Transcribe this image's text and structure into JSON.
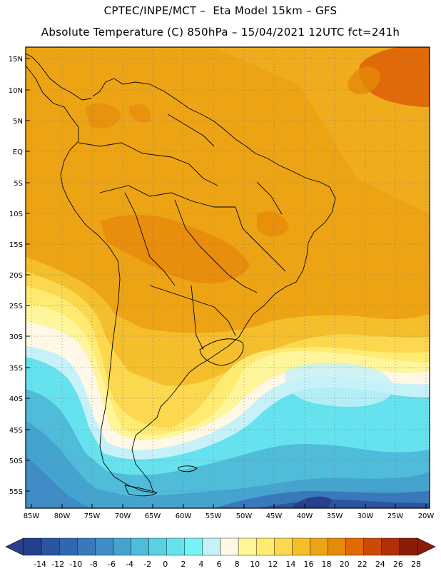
{
  "title_line1": "CPTEC/INPE/MCT –  Eta Model 15km – GFS",
  "title_line2": "Absolute Temperature (C) 850hPa – 15/04/2021 12UTC fct=241h",
  "lat_labels": [
    "15N",
    "10N",
    "5N",
    "EQ",
    "5S",
    "10S",
    "15S",
    "20S",
    "25S",
    "30S",
    "35S",
    "40S",
    "45S",
    "50S",
    "55S"
  ],
  "lon_labels": [
    "85W",
    "80W",
    "75W",
    "70W",
    "65W",
    "60W",
    "55W",
    "50W",
    "45W",
    "40W",
    "35W",
    "30W",
    "25W",
    "20W"
  ],
  "colorbar": {
    "labels": [
      "-14",
      "-12",
      "-10",
      "-8",
      "-6",
      "-4",
      "-2",
      "0",
      "2",
      "4",
      "6",
      "8",
      "10",
      "12",
      "14",
      "16",
      "18",
      "20",
      "22",
      "24",
      "26",
      "28"
    ],
    "colors": [
      "#27408b",
      "#2c55a0",
      "#3266b0",
      "#3978bb",
      "#3f8cc6",
      "#45a3cf",
      "#4fbcd9",
      "#5ad0e4",
      "#66e2ee",
      "#77f3f6",
      "#c7f1f9",
      "#fff8e6",
      "#fff59a",
      "#ffea72",
      "#fbd84e",
      "#f4be2d",
      "#eda414",
      "#e68a0a",
      "#e06a08",
      "#cc4a08",
      "#b03008",
      "#8c1c08"
    ],
    "low_end_color": "#27408b",
    "high_end_color": "#8c1c08"
  },
  "colors": {
    "warm": "#eda414",
    "warmer": "#e68a0a",
    "hot": "#e06a08",
    "mild": "#f4be2d",
    "pale_yellow": "#ffea72",
    "cream": "#fff8e6",
    "light_cyan": "#c7f1f9",
    "cyan": "#66e2ee",
    "mid_blue": "#45a3cf",
    "deep_blue": "#2c55a0"
  }
}
